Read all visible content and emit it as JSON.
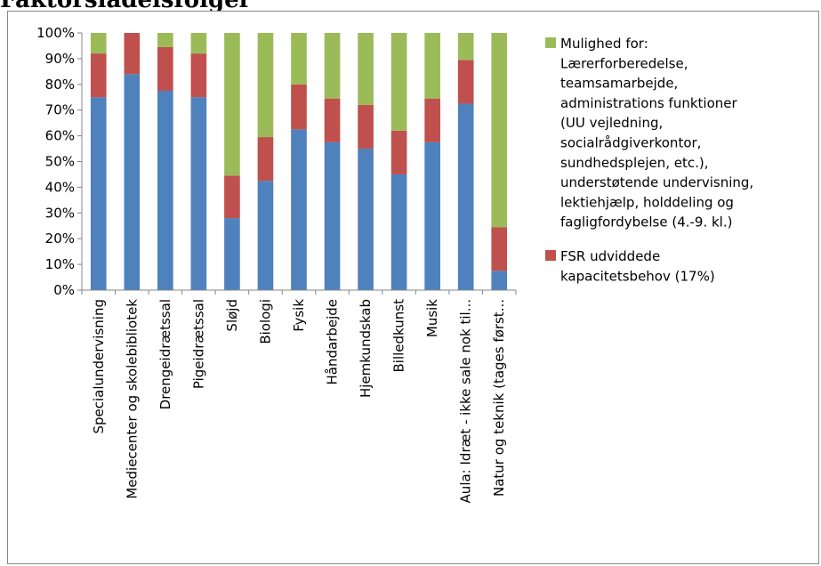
{
  "page": {
    "heading": "Faktorsladelsfolger"
  },
  "chart_data": {
    "type": "bar",
    "stacked": true,
    "percent": true,
    "categories": [
      "Specialundervisning",
      "Mediecenter og skolebibliotek",
      "Drengeidrætssal",
      "Pigeidrætssal",
      "Sløjd",
      "Biologi",
      "Fysik",
      "Håndarbejde",
      "Hjemkundskab",
      "Billedkunst",
      "Musik",
      "Aula: Idræt - ikke sale nok til...",
      "Natur og teknik (tages først..."
    ],
    "series": [
      {
        "name": "",
        "color": "#4f81bd",
        "values": [
          75,
          84,
          77.5,
          75,
          28,
          42.5,
          62.5,
          57.5,
          55,
          45,
          57.5,
          72.5,
          7.5
        ]
      },
      {
        "name": "FSR udviddede kapacitetsbehov (17%)",
        "color": "#c0504d",
        "values": [
          17,
          16,
          17,
          17,
          16.5,
          17,
          17.5,
          17,
          17,
          17,
          17,
          17,
          17
        ]
      },
      {
        "name": "Mulighed for: Lærerforberedelse, teamsamarbejde, administrations funktioner (UU vejledning, socialrådgiverkontor, sundhedsplejen, etc.), understøtende undervisning, lektiehjælp, holddeling og fagligfordybelse (4.-9. kl.)",
        "color": "#9bbb59",
        "values": [
          8,
          0,
          5.5,
          8,
          55.5,
          40.5,
          20,
          25.5,
          28,
          38,
          25.5,
          10.5,
          75.5
        ]
      }
    ],
    "yticks": [
      "0%",
      "10%",
      "20%",
      "30%",
      "40%",
      "50%",
      "60%",
      "70%",
      "80%",
      "90%",
      "100%"
    ],
    "ylim": [
      0,
      100
    ],
    "grid": false,
    "legend": {
      "placement": "right",
      "entries": [
        {
          "lines": [
            "Mulighed for:",
            "Lærerforberedelse,",
            "teamsamarbejde,",
            "administrations funktioner",
            "(UU vejledning,",
            "socialrådgiverkontor,",
            "sundhedsplejen, etc.),",
            "understøtende undervisning,",
            "lektiehjælp, holddeling og",
            "fagligfordybelse (4.-9. kl.)"
          ],
          "color": "#9bbb59"
        },
        {
          "lines": [
            "FSR udviddede",
            "kapacitetsbehov (17%)"
          ],
          "color": "#c0504d"
        }
      ]
    }
  }
}
